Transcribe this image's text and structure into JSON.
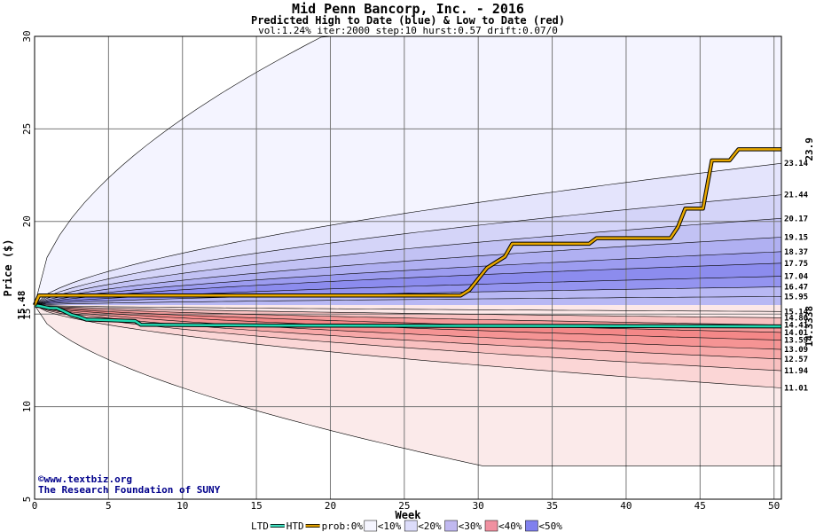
{
  "chart_data": {
    "type": "area",
    "title": "Mid Penn Bancorp, Inc. - 2016",
    "subtitle": "Predicted High to Date (blue) &  Low to Date (red)",
    "params": "vol:1.24% iter:2000 step:10 hurst:0.57 drift:0.07/0",
    "xlabel": "Week",
    "ylabel": "Price ($)",
    "xlim": [
      0,
      50.5
    ],
    "ylim": [
      5,
      30
    ],
    "x_ticks": [
      0,
      5,
      10,
      15,
      20,
      25,
      30,
      35,
      40,
      45,
      50
    ],
    "y_ticks": [
      5,
      10,
      15,
      20,
      25,
      30
    ],
    "grid": true,
    "start_price": 15.48,
    "start_label": "15.48",
    "final_htd": 23.9,
    "final_htd_label": "23.9",
    "final_ltd": 14.3338,
    "final_ltd_label": "14.3338",
    "high_levels": [
      {
        "v": 23.14,
        "t": "23.14"
      },
      {
        "v": 21.44,
        "t": "21.44"
      },
      {
        "v": 20.17,
        "t": "20.17"
      },
      {
        "v": 19.15,
        "t": "19.15"
      },
      {
        "v": 18.37,
        "t": "18.37"
      },
      {
        "v": 17.75,
        "t": "17.75"
      },
      {
        "v": 17.04,
        "t": "17.04"
      },
      {
        "v": 16.47,
        "t": "16.47"
      },
      {
        "v": 15.95,
        "t": "15.95"
      }
    ],
    "low_levels": [
      {
        "v": 15.14,
        "t": "15.14"
      },
      {
        "v": 14.8,
        "t": "14.80"
      },
      {
        "v": 14.41,
        "t": "14.41"
      },
      {
        "v": 14.01,
        "t": "14.01"
      },
      {
        "v": 13.59,
        "t": "13.59"
      },
      {
        "v": 13.09,
        "t": "13.09"
      },
      {
        "v": 12.57,
        "t": "12.57"
      },
      {
        "v": 11.94,
        "t": "11.94"
      },
      {
        "v": 11.01,
        "t": "11.01"
      }
    ],
    "high_outer_top": 30,
    "low_outer_bottom": 6.8,
    "htd_series": {
      "name": "HTD",
      "x": [
        0,
        0.3,
        28.8,
        29.4,
        30,
        30.6,
        31.2,
        31.8,
        32.3,
        37.5,
        38,
        43,
        43.5,
        44,
        45.2,
        45.8,
        47,
        47.6,
        50.5
      ],
      "y": [
        15.48,
        16.0,
        16.0,
        16.3,
        16.9,
        17.5,
        17.8,
        18.1,
        18.8,
        18.8,
        19.1,
        19.1,
        19.7,
        20.7,
        20.7,
        23.3,
        23.3,
        23.9,
        23.9
      ]
    },
    "ltd_series": {
      "name": "LTD",
      "x": [
        0,
        0.4,
        1.0,
        1.5,
        2.0,
        2.5,
        3.0,
        3.5,
        4.0,
        6.8,
        7.2,
        12.0,
        16.0,
        50.5
      ],
      "y": [
        15.48,
        15.42,
        15.32,
        15.32,
        15.15,
        14.95,
        14.85,
        14.7,
        14.7,
        14.62,
        14.42,
        14.4,
        14.38,
        14.3338
      ]
    },
    "legend": [
      {
        "t": "LTD",
        "kind": "text"
      },
      {
        "t": "",
        "kind": "line",
        "color": "#40e0c0"
      },
      {
        "t": "HTD",
        "kind": "text"
      },
      {
        "t": "",
        "kind": "line",
        "color": "#e0a000"
      },
      {
        "t": "prob:0%",
        "kind": "text"
      },
      {
        "t": "<10%",
        "kind": "swatch",
        "color": "#f5f5ff"
      },
      {
        "t": "<20%",
        "kind": "swatch",
        "color": "#dcdcfa"
      },
      {
        "t": "<30%",
        "kind": "swatch",
        "color": "#c0b8f0"
      },
      {
        "t": "<40%",
        "kind": "swatch",
        "color": "#f090a0"
      },
      {
        "t": "<50%",
        "kind": "swatch",
        "color": "#8080ee"
      }
    ],
    "high_band_colors": [
      "#f4f4ff",
      "#e4e4fc",
      "#d4d4f8",
      "#c2c2f4",
      "#b0b0f2",
      "#9c9cf0",
      "#8c8cee",
      "#9494f0",
      "#b8b8f4"
    ],
    "low_band_colors": [
      "#fbeaea",
      "#fbd6d6",
      "#f9c0c0",
      "#f7a8a8",
      "#f59494",
      "#f48888",
      "#f59a9a",
      "#f8c0c0",
      "#fde8e8"
    ],
    "htd_color": "#e8a800",
    "ltd_color": "#20d8b0",
    "start_label_color": "#006040",
    "htd_label_color": "#8b6c00",
    "ltd_label_color": "#008060"
  },
  "credit": {
    "site": "©www.textbiz.org",
    "org": "The Research Foundation of SUNY"
  }
}
